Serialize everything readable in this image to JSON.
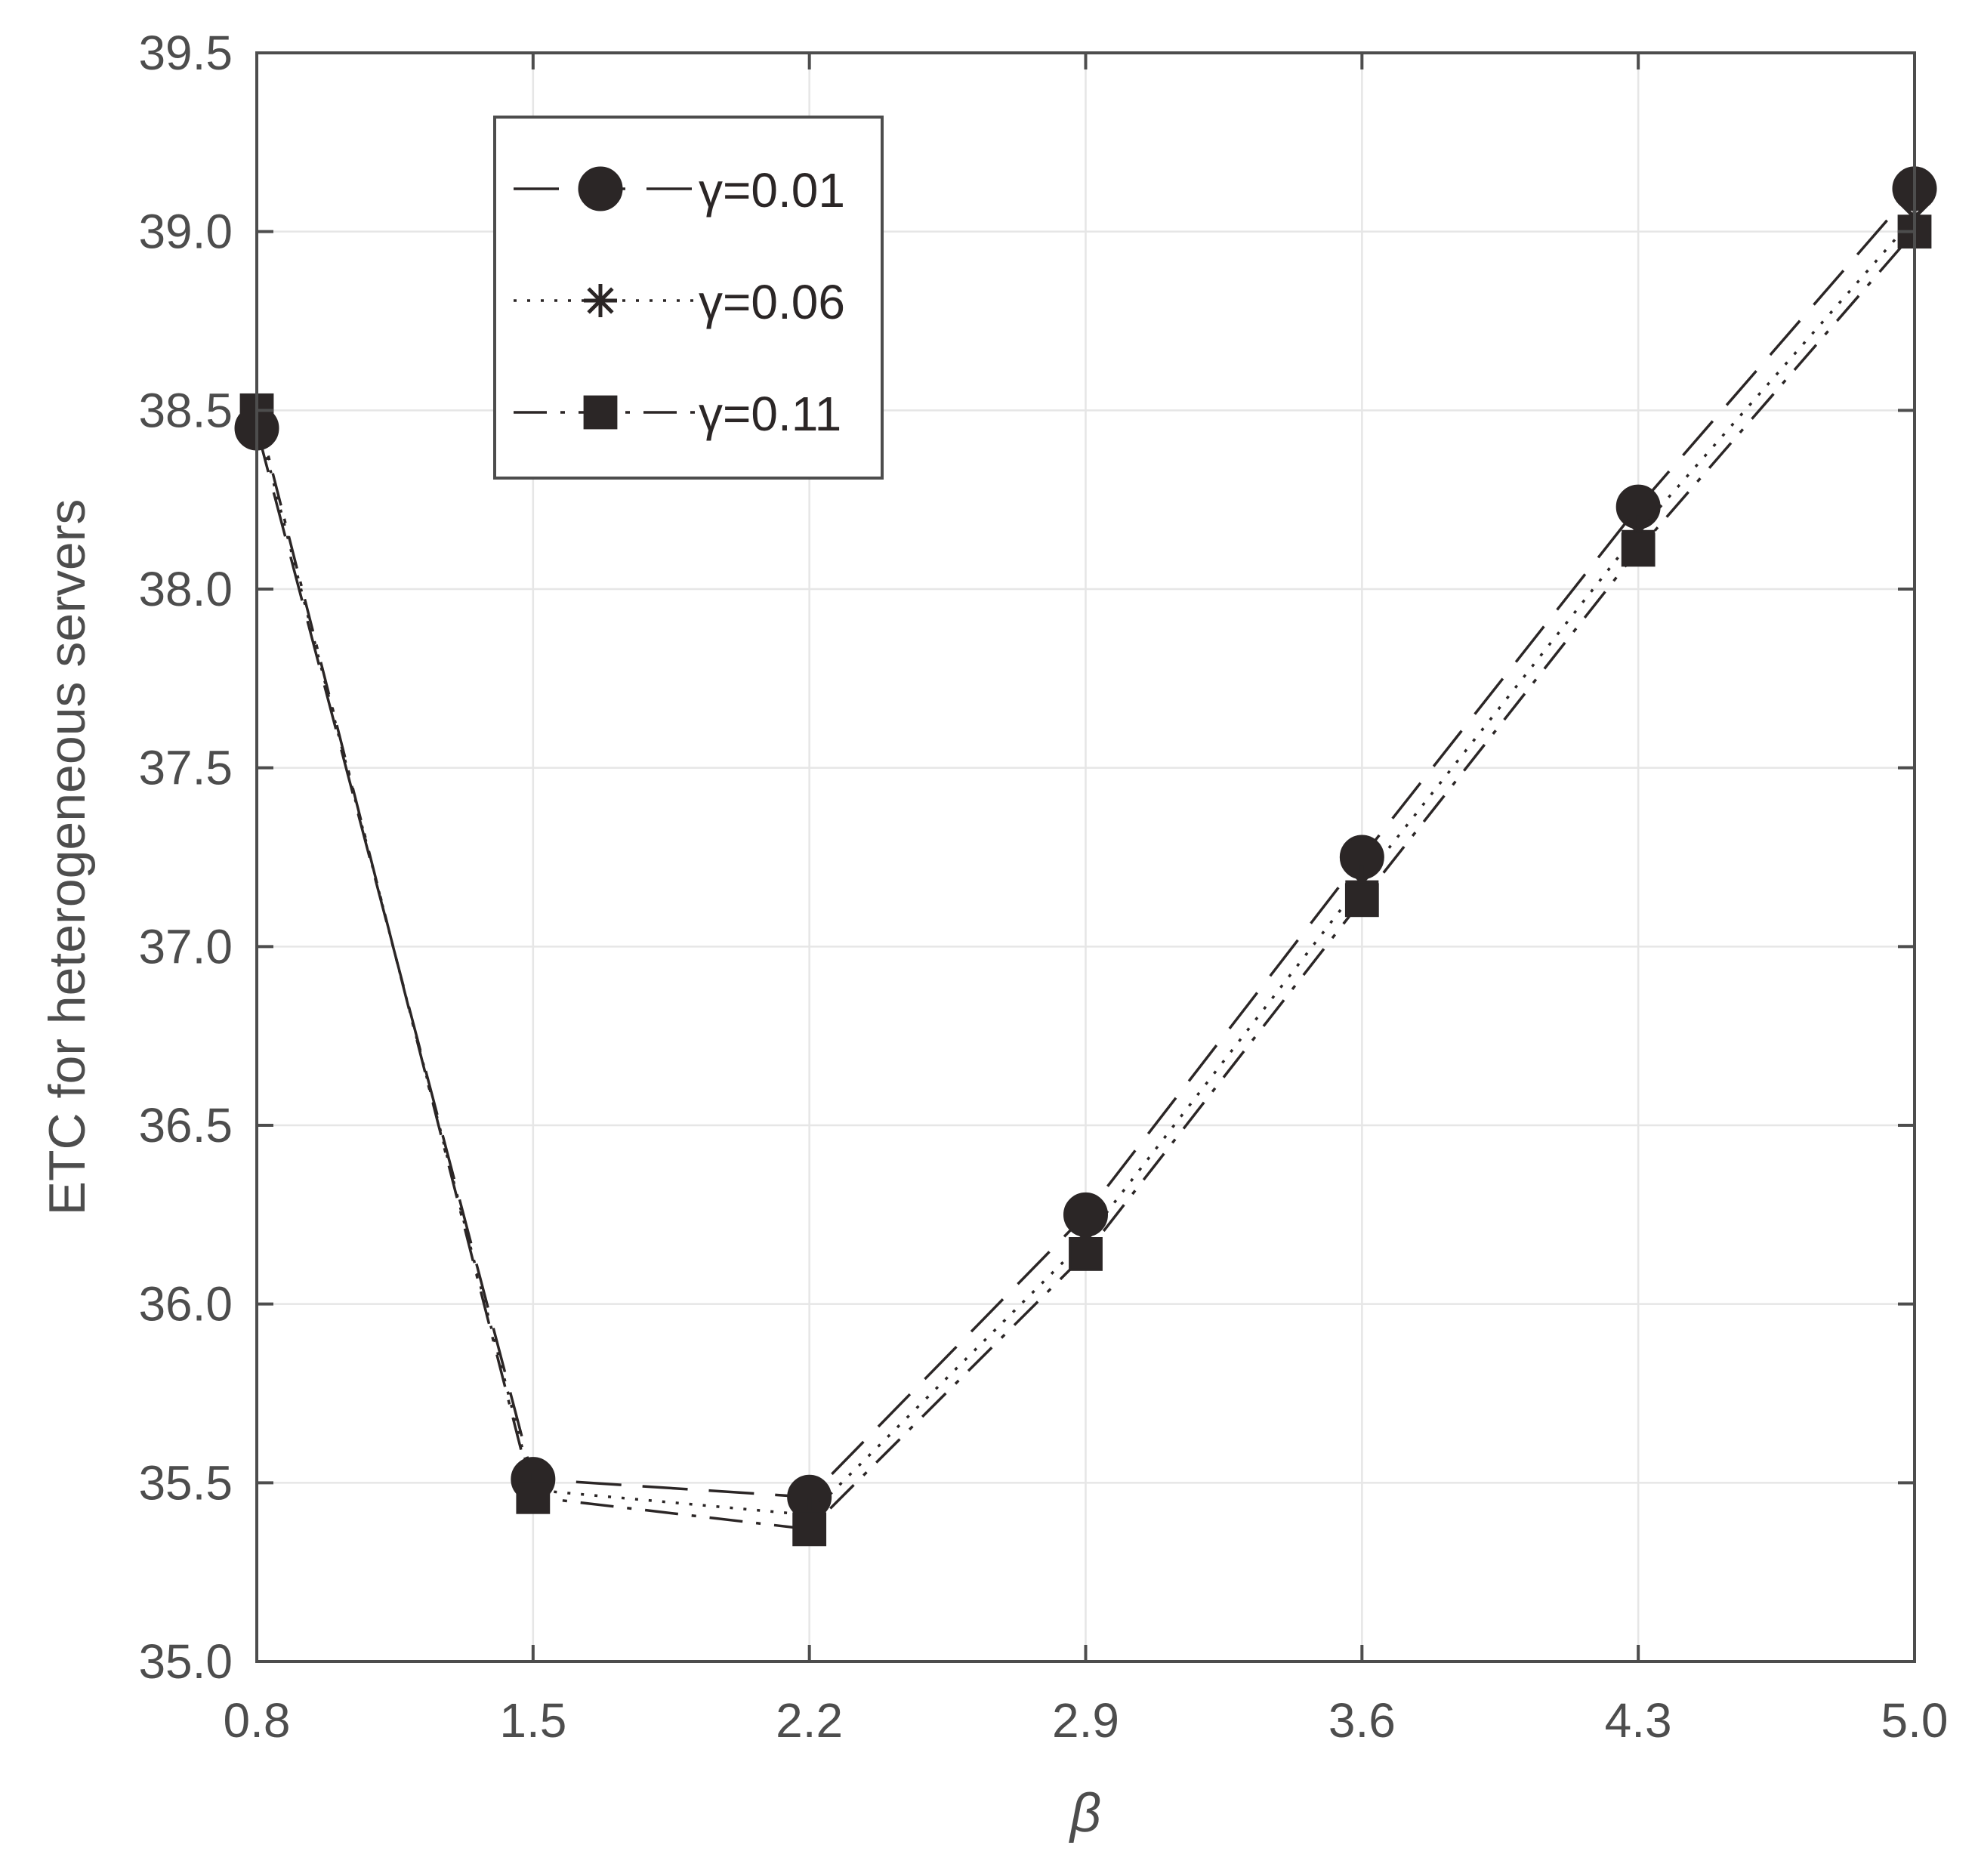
{
  "chart_data": {
    "type": "line",
    "title": "",
    "xlabel": "β",
    "ylabel": "ETC for heterogeneous servers",
    "x": [
      0.8,
      1.5,
      2.2,
      2.9,
      3.6,
      4.3,
      5.0
    ],
    "x_tick_labels": [
      "0.8",
      "1.5",
      "2.2",
      "2.9",
      "3.6",
      "4.3",
      "5.0"
    ],
    "xlim": [
      0.8,
      5.0
    ],
    "ylim": [
      35.0,
      39.5
    ],
    "y_ticks": [
      35.0,
      35.5,
      36.0,
      36.5,
      37.0,
      37.5,
      38.0,
      38.5,
      39.0,
      39.5
    ],
    "y_tick_labels": [
      "35.0",
      "35.5",
      "36.0",
      "36.5",
      "37.0",
      "37.5",
      "38.0",
      "38.5",
      "39.0",
      "39.5"
    ],
    "grid": true,
    "legend_position": "top-left",
    "series": [
      {
        "name": "γ=0.01",
        "marker": "circle",
        "line_style": "dashed",
        "values": [
          38.45,
          35.51,
          35.46,
          36.25,
          37.25,
          38.23,
          39.12
        ]
      },
      {
        "name": "γ=0.06",
        "marker": "asterisk",
        "line_style": "dotted",
        "values": [
          38.48,
          35.48,
          35.41,
          36.18,
          37.18,
          38.16,
          39.04
        ]
      },
      {
        "name": "γ=0.11",
        "marker": "square",
        "line_style": "dash-dot",
        "values": [
          38.5,
          35.46,
          35.37,
          36.14,
          37.13,
          38.11,
          39.0
        ]
      }
    ],
    "colors": {
      "line": "#2b2626",
      "axis": "#4d4d4d",
      "grid": "#e6e6e6",
      "text": "#4d4d4d"
    }
  }
}
